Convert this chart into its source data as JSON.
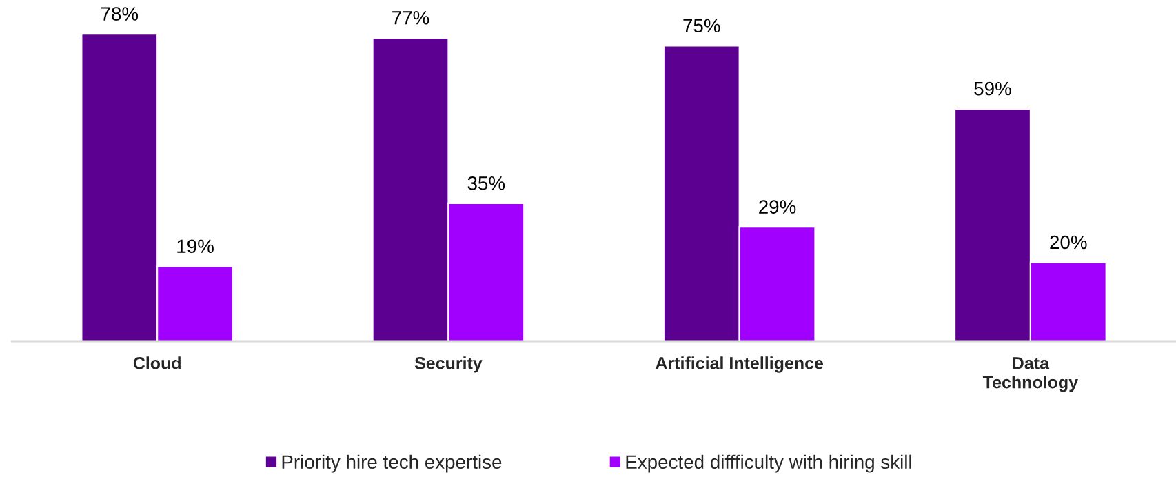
{
  "chart_data": {
    "type": "bar",
    "categories": [
      "Cloud",
      "Security",
      "Artificial Intelligence",
      "Data\nTechnology"
    ],
    "series": [
      {
        "name": "Priority hire tech expertise",
        "color": "#5c0091",
        "values": [
          78,
          77,
          75,
          59
        ],
        "value_labels": [
          "78%",
          "77%",
          "75%",
          "59%"
        ]
      },
      {
        "name": "Expected diffficulty with hiring skill",
        "color": "#a100ff",
        "values": [
          19,
          35,
          29,
          20
        ],
        "value_labels": [
          "19%",
          "35%",
          "29%",
          "20%"
        ]
      }
    ],
    "tick_labels": "x",
    "legend": "bottom"
  }
}
